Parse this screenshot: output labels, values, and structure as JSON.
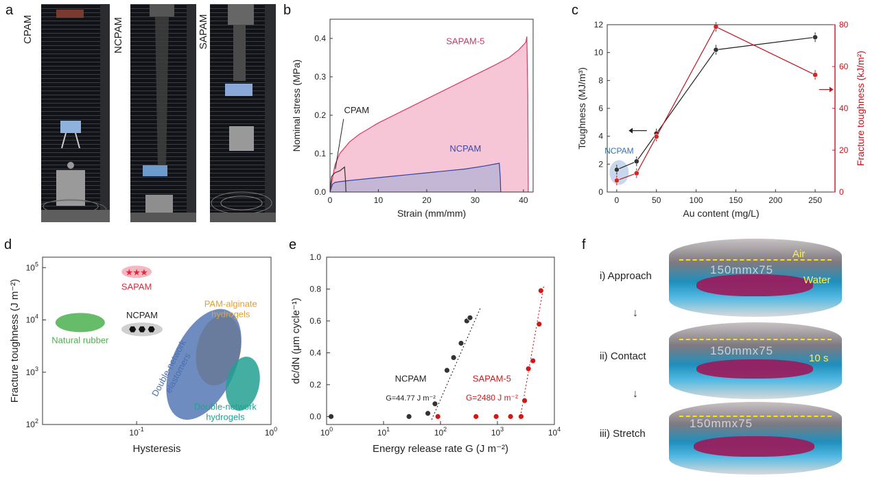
{
  "panel_letters": {
    "a": "a",
    "b": "b",
    "c": "c",
    "d": "d",
    "e": "e",
    "f": "f"
  },
  "panel_a": {
    "labels": [
      "CPAM",
      "NCPAM",
      "SAPAM"
    ]
  },
  "panel_f": {
    "steps": [
      "i) Approach",
      "ii) Contact",
      "iii) Stretch"
    ],
    "arrow": "↓",
    "air": "Air",
    "water": "Water",
    "time": "10 s",
    "ruler": "150mmx75"
  },
  "chart_data": [
    {
      "id": "b",
      "type": "area",
      "xlabel": "Strain (mm/mm)",
      "ylabel": "Nominal stress (MPa)",
      "xlim": [
        0,
        42
      ],
      "ylim": [
        0,
        0.45
      ],
      "xticks": [
        "0",
        "10",
        "20",
        "30",
        "40"
      ],
      "yticks": [
        "0.0",
        "0.1",
        "0.2",
        "0.3",
        "0.4"
      ],
      "series": [
        {
          "name": "SAPAM-5",
          "color": "#d63a63",
          "fill": "#f7c6d6",
          "x": [
            0,
            1,
            2,
            4,
            6,
            8,
            10,
            14,
            18,
            22,
            26,
            30,
            34,
            37,
            39,
            40.5,
            40.7,
            40.9,
            41.0
          ],
          "y": [
            0,
            0.07,
            0.1,
            0.13,
            0.15,
            0.165,
            0.18,
            0.205,
            0.23,
            0.255,
            0.28,
            0.305,
            0.33,
            0.35,
            0.37,
            0.39,
            0.405,
            0.25,
            0
          ]
        },
        {
          "name": "NCPAM",
          "color": "#3040a0",
          "fill": "#c4b7d6",
          "x": [
            0,
            0.5,
            1,
            2,
            4,
            8,
            12,
            16,
            20,
            24,
            28,
            32,
            35,
            35.2,
            35.3
          ],
          "y": [
            0,
            0.02,
            0.025,
            0.027,
            0.03,
            0.035,
            0.04,
            0.045,
            0.05,
            0.055,
            0.06,
            0.068,
            0.075,
            0.04,
            0
          ]
        },
        {
          "name": "CPAM",
          "color": "#333333",
          "fill": "none",
          "x": [
            0,
            0.3,
            1,
            2,
            3,
            3.2,
            3.3
          ],
          "y": [
            0,
            0.04,
            0.05,
            0.055,
            0.065,
            0.03,
            0
          ]
        }
      ],
      "annotations": [
        "SAPAM-5",
        "NCPAM",
        "CPAM"
      ]
    },
    {
      "id": "c",
      "type": "line",
      "xlabel": "Au content (mg/L)",
      "ylabel_left": "Toughness (MJ/m³)",
      "ylabel_right": "Fracture toughness (kJ/m²)",
      "xlim": [
        -12,
        275
      ],
      "ylim_left": [
        0,
        12
      ],
      "ylim_right": [
        0,
        80
      ],
      "xticks": [
        "0",
        "50",
        "100",
        "150",
        "200",
        "250"
      ],
      "yticks_left": [
        "0",
        "2",
        "4",
        "6",
        "8",
        "10",
        "12"
      ],
      "yticks_right": [
        "0",
        "20",
        "40",
        "60",
        "80"
      ],
      "series": [
        {
          "name": "Toughness",
          "axis": "left",
          "color": "#222222",
          "x": [
            0,
            25,
            50,
            125,
            250
          ],
          "y": [
            1.6,
            2.2,
            4.2,
            10.2,
            11.1
          ]
        },
        {
          "name": "Fracture toughness",
          "axis": "right",
          "color": "#c0141e",
          "x": [
            0,
            25,
            50,
            125,
            250
          ],
          "y": [
            5.5,
            9,
            26.5,
            79,
            56
          ]
        }
      ],
      "highlight_label": "NCPAM"
    },
    {
      "id": "d",
      "type": "scatter",
      "xlabel": "Hysteresis",
      "ylabel": "Fracture toughness (J m⁻²)",
      "x_log": true,
      "y_log": true,
      "xticks": [
        {
          "base": "10",
          "exp": "-1"
        },
        {
          "base": "10",
          "exp": "0"
        }
      ],
      "yticks": [
        {
          "base": "10",
          "exp": "2"
        },
        {
          "base": "10",
          "exp": "3"
        },
        {
          "base": "10",
          "exp": "4"
        },
        {
          "base": "10",
          "exp": "5"
        }
      ],
      "regions": [
        {
          "name": "Natural rubber",
          "color": "#4cb050"
        },
        {
          "name": "SAPAM",
          "color": "#e0283c"
        },
        {
          "name": "NCPAM",
          "color": "#222222"
        },
        {
          "name": "PAM-alginate\nhydrogels",
          "color": "#e0a030"
        },
        {
          "name": "Double-network\nelastomers",
          "color": "#4a6fb0"
        },
        {
          "name": "Double-network\nhydrogels",
          "color": "#22a090"
        }
      ]
    },
    {
      "id": "e",
      "type": "scatter",
      "xlabel": "Energy release rate G (J m⁻²)",
      "ylabel": "dc/dN (μm cycle⁻¹)",
      "x_log": true,
      "xlim": [
        1,
        10000
      ],
      "ylim": [
        -0.05,
        1.0
      ],
      "xticks": [
        {
          "base": "10",
          "exp": "0"
        },
        {
          "base": "10",
          "exp": "1"
        },
        {
          "base": "10",
          "exp": "2"
        },
        {
          "base": "10",
          "exp": "3"
        },
        {
          "base": "10",
          "exp": "4"
        }
      ],
      "yticks": [
        "0.0",
        "0.2",
        "0.4",
        "0.6",
        "0.8",
        "1.0"
      ],
      "series": [
        {
          "name": "NCPAM",
          "color": "#333333",
          "x": [
            1.2,
            28,
            60,
            80,
            130,
            170,
            230,
            290,
            330
          ],
          "y": [
            0,
            0,
            0.02,
            0.08,
            0.29,
            0.37,
            0.46,
            0.6,
            0.62
          ]
        },
        {
          "name": "SAPAM-5",
          "color": "#d01818",
          "x": [
            90,
            420,
            950,
            1700,
            2600,
            3000,
            3500,
            4200,
            5400,
            5800
          ],
          "y": [
            0,
            0,
            0,
            0,
            0,
            0.1,
            0.3,
            0.35,
            0.58,
            0.79
          ]
        }
      ],
      "fits": [
        {
          "series": "NCPAM",
          "label": "G=44.77 J m⁻²",
          "color": "#333333"
        },
        {
          "series": "SAPAM-5",
          "label": "G=2480 J m⁻²",
          "color": "#d01818"
        }
      ]
    }
  ]
}
